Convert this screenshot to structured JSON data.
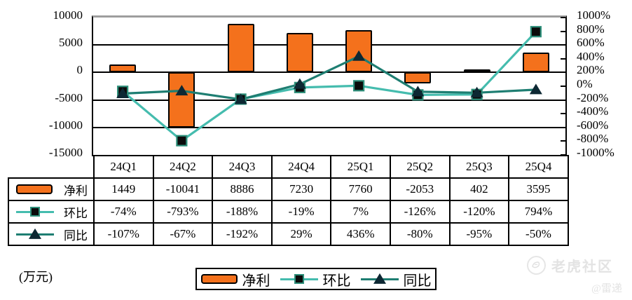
{
  "chart_data": {
    "type": "bar+line",
    "categories": [
      "24Q1",
      "24Q2",
      "24Q3",
      "24Q4",
      "25Q1",
      "25Q2",
      "25Q3",
      "25Q4"
    ],
    "series": [
      {
        "name": "净利",
        "type": "bar",
        "axis": "left",
        "marker": "none",
        "color": "#F4711C",
        "values": [
          1449,
          -10041,
          8886,
          7230,
          7760,
          -2053,
          402,
          3595
        ]
      },
      {
        "name": "环比",
        "type": "line",
        "axis": "right",
        "marker": "square",
        "color": "#45BCAE",
        "marker_fill": "#0b0b0b",
        "marker_stroke": "#2e8f7a",
        "values": [
          -74,
          -793,
          -188,
          -19,
          7,
          -126,
          -120,
          794
        ]
      },
      {
        "name": "同比",
        "type": "line",
        "axis": "right",
        "marker": "triangle",
        "color": "#1E7E72",
        "marker_fill": "#0d2833",
        "values": [
          -107,
          -67,
          -192,
          29,
          436,
          -80,
          -95,
          -50
        ]
      }
    ],
    "left_axis": {
      "min": -15000,
      "max": 10000,
      "step": 5000,
      "ticks": [
        10000,
        5000,
        0,
        -5000,
        -10000,
        -15000
      ],
      "suffix": ""
    },
    "right_axis": {
      "min": -1000,
      "max": 1000,
      "step": 200,
      "ticks": [
        1000,
        800,
        600,
        400,
        200,
        0,
        -200,
        -400,
        -600,
        -800,
        -1000
      ],
      "suffix": "%"
    },
    "grid": "horizontal",
    "legend_position": "bottom",
    "unit_label": "(万元)"
  },
  "table": {
    "header": [
      "24Q1",
      "24Q2",
      "24Q3",
      "24Q4",
      "25Q1",
      "25Q2",
      "25Q3",
      "25Q4"
    ],
    "rows": [
      {
        "label": "净利",
        "icon": "bar-swatch",
        "cells": [
          "1449",
          "-10041",
          "8886",
          "7230",
          "7760",
          "-2053",
          "402",
          "3595"
        ]
      },
      {
        "label": "环比",
        "icon": "line-square-swatch",
        "cells": [
          "-74%",
          "-793%",
          "-188%",
          "-19%",
          "7%",
          "-126%",
          "-120%",
          "794%"
        ]
      },
      {
        "label": "同比",
        "icon": "line-triangle-swatch",
        "cells": [
          "-107%",
          "-67%",
          "-192%",
          "29%",
          "436%",
          "-80%",
          "-95%",
          "-50%"
        ]
      }
    ]
  },
  "legend": {
    "items": [
      {
        "label": "净利",
        "icon": "bar-swatch"
      },
      {
        "label": "环比",
        "icon": "line-square-swatch"
      },
      {
        "label": "同比",
        "icon": "line-triangle-swatch"
      }
    ]
  },
  "watermark": {
    "brand": "老虎社区",
    "author": "@雷递",
    "icon": "tiger-logo"
  }
}
